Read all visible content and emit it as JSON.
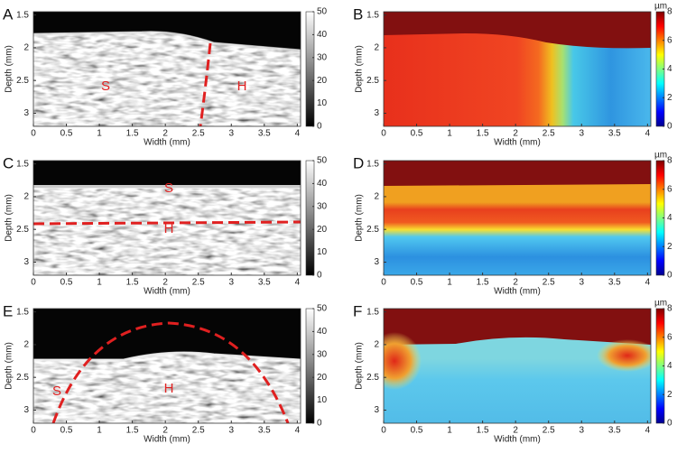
{
  "chart_data": [
    {
      "type": "heatmap",
      "panel_label": "A",
      "xlabel": "Width (mm)",
      "ylabel": "Depth (mm)",
      "xlim": [
        0,
        4.05
      ],
      "ylim": [
        1.45,
        3.2
      ],
      "xticks": [
        0,
        0.5,
        1,
        1.5,
        2,
        2.5,
        3,
        3.5,
        4
      ],
      "yticks": [
        1.5,
        2,
        2.5,
        3
      ],
      "colormap": "gray",
      "clim": [
        0,
        50
      ],
      "cticks": [
        0,
        10,
        20,
        30,
        40,
        50
      ],
      "annotations": [
        "S",
        "H"
      ]
    },
    {
      "type": "heatmap",
      "panel_label": "B",
      "xlabel": "Width (mm)",
      "ylabel": "Depth (mm)",
      "xlim": [
        0,
        4.05
      ],
      "ylim": [
        1.45,
        3.2
      ],
      "xticks": [
        0,
        0.5,
        1,
        1.5,
        2,
        2.5,
        3,
        3.5,
        4
      ],
      "yticks": [
        1.5,
        2,
        2.5,
        3
      ],
      "colormap": "jet",
      "clim": [
        0,
        8
      ],
      "cticks": [
        0,
        2,
        4,
        6,
        8
      ],
      "cunit": "µm"
    },
    {
      "type": "heatmap",
      "panel_label": "C",
      "xlabel": "Width (mm)",
      "ylabel": "Depth (mm)",
      "xlim": [
        0,
        4.05
      ],
      "ylim": [
        1.45,
        3.2
      ],
      "xticks": [
        0,
        0.5,
        1,
        1.5,
        2,
        2.5,
        3,
        3.5,
        4
      ],
      "yticks": [
        1.5,
        2,
        2.5,
        3
      ],
      "colormap": "gray",
      "clim": [
        0,
        50
      ],
      "cticks": [
        0,
        10,
        20,
        30,
        40,
        50
      ],
      "annotations": [
        "S",
        "H"
      ]
    },
    {
      "type": "heatmap",
      "panel_label": "D",
      "xlabel": "Width (mm)",
      "ylabel": "Depth (mm)",
      "xlim": [
        0,
        4.05
      ],
      "ylim": [
        1.45,
        3.2
      ],
      "xticks": [
        0,
        0.5,
        1,
        1.5,
        2,
        2.5,
        3,
        3.5,
        4
      ],
      "yticks": [
        1.5,
        2,
        2.5,
        3
      ],
      "colormap": "jet",
      "clim": [
        0,
        8
      ],
      "cticks": [
        0,
        2,
        4,
        6,
        8
      ],
      "cunit": "µm"
    },
    {
      "type": "heatmap",
      "panel_label": "E",
      "xlabel": "Width (mm)",
      "ylabel": "Depth (mm)",
      "xlim": [
        0,
        4.05
      ],
      "ylim": [
        1.45,
        3.2
      ],
      "xticks": [
        0,
        0.5,
        1,
        1.5,
        2,
        2.5,
        3,
        3.5,
        4
      ],
      "yticks": [
        1.5,
        2,
        2.5,
        3
      ],
      "colormap": "gray",
      "clim": [
        0,
        50
      ],
      "cticks": [
        0,
        10,
        20,
        30,
        40,
        50
      ],
      "annotations": [
        "S",
        "H"
      ]
    },
    {
      "type": "heatmap",
      "panel_label": "F",
      "xlabel": "Width (mm)",
      "ylabel": "Depth (mm)",
      "xlim": [
        0,
        4.05
      ],
      "ylim": [
        1.45,
        3.2
      ],
      "xticks": [
        0,
        0.5,
        1,
        1.5,
        2,
        2.5,
        3,
        3.5,
        4
      ],
      "yticks": [
        1.5,
        2,
        2.5,
        3
      ],
      "colormap": "jet",
      "clim": [
        0,
        8
      ],
      "cticks": [
        0,
        2,
        4,
        6,
        8
      ],
      "cunit": "µm"
    }
  ]
}
